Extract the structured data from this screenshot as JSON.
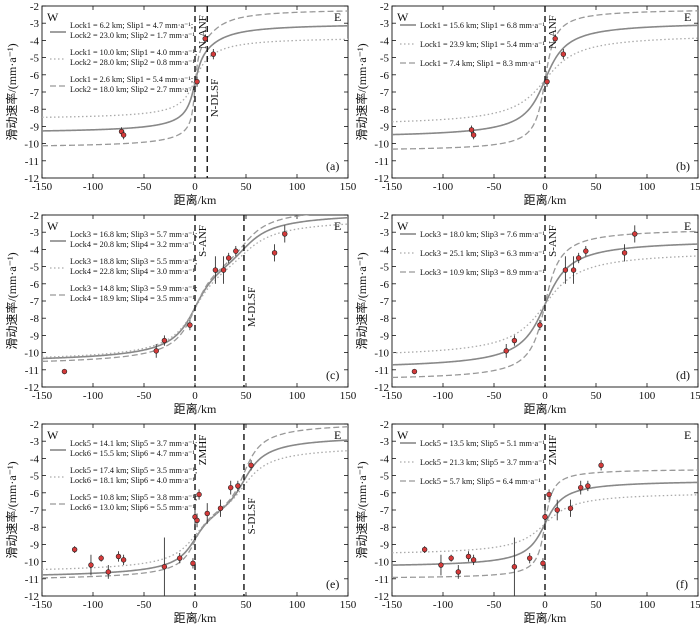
{
  "figure": {
    "xlabel": "距离/km",
    "ylabel": "滑动速率/(mm·a⁻¹)",
    "west": "W",
    "east": "E",
    "xticks": [
      -150,
      -100,
      -50,
      0,
      50,
      100,
      150
    ],
    "yticks": [
      -12,
      -11,
      -10,
      -9,
      -8,
      -7,
      -6,
      -5,
      -4,
      -3,
      -2
    ]
  },
  "chart_data": [
    {
      "type": "line",
      "panel": "(a)",
      "xlim": [
        -150,
        150
      ],
      "ylim": [
        -12,
        -2
      ],
      "legend": [
        {
          "style": "solid",
          "line1": "Lock1 = 6.2 km; Slip1 = 4.7 mm·a⁻¹;",
          "line2": "Lock2 = 23.0 km; Slip2 = 1.7 mm·a⁻¹"
        },
        {
          "style": "dotted",
          "line1": "Lock1 = 10.0 km; Slip1 = 4.0 mm·a⁻¹;",
          "line2": "Lock2 = 28.0 km; Slip2 = 0.8 mm·a⁻¹"
        },
        {
          "style": "dashed",
          "line1": "Lock1 = 2.6 km; Slip1 = 5.4 mm·a⁻¹;",
          "line2": "Lock2 = 18.0 km; Slip2 = 2.7 mm·a⁻¹"
        }
      ],
      "faults": [
        {
          "x": 0,
          "label": "N-ANF"
        },
        {
          "x": 12,
          "label": "N-DLSF"
        }
      ],
      "curves": [
        {
          "style": "solid",
          "params": [
            [
              0,
              6.2,
              4.7
            ],
            [
              12,
              23.0,
              1.7
            ]
          ],
          "offset": -6.2
        },
        {
          "style": "dotted",
          "params": [
            [
              0,
              10.0,
              4.0
            ],
            [
              12,
              28.0,
              0.8
            ]
          ],
          "offset": -6.2
        },
        {
          "style": "dashed",
          "params": [
            [
              0,
              2.6,
              5.4
            ],
            [
              12,
              18.0,
              2.7
            ]
          ],
          "offset": -6.2
        }
      ],
      "points": [
        {
          "x": -72,
          "y": -9.3,
          "err": 0.25
        },
        {
          "x": -70,
          "y": -9.5,
          "err": 0.25
        },
        {
          "x": 2,
          "y": -6.4,
          "err": 0.3
        },
        {
          "x": 10,
          "y": -3.9,
          "err": 0.25
        },
        {
          "x": 18,
          "y": -4.8,
          "err": 0.3
        }
      ]
    },
    {
      "type": "line",
      "panel": "(b)",
      "xlim": [
        -150,
        150
      ],
      "ylim": [
        -12,
        -2
      ],
      "legend": [
        {
          "style": "solid",
          "line1": "Lock1 = 15.6 km; Slip1 = 6.8 mm·a⁻¹"
        },
        {
          "style": "dotted",
          "line1": "Lock1 = 23.9 km; Slip1 = 5.4 mm·a⁻¹"
        },
        {
          "style": "dashed",
          "line1": "Lock1 = 7.4 km; Slip1 = 8.3 mm·a⁻¹"
        }
      ],
      "faults": [
        {
          "x": 0,
          "label": "N-ANF"
        }
      ],
      "curves": [
        {
          "style": "solid",
          "params": [
            [
              0,
              15.6,
              6.8
            ]
          ],
          "offset": -6.3
        },
        {
          "style": "dotted",
          "params": [
            [
              0,
              23.9,
              5.4
            ]
          ],
          "offset": -6.3
        },
        {
          "style": "dashed",
          "params": [
            [
              0,
              7.4,
              8.3
            ]
          ],
          "offset": -6.3
        }
      ],
      "points": [
        {
          "x": -72,
          "y": -9.2,
          "err": 0.25
        },
        {
          "x": -70,
          "y": -9.5,
          "err": 0.25
        },
        {
          "x": 2,
          "y": -6.4,
          "err": 0.3
        },
        {
          "x": 10,
          "y": -3.9,
          "err": 0.25
        },
        {
          "x": 18,
          "y": -4.8,
          "err": 0.3
        }
      ]
    },
    {
      "type": "line",
      "panel": "(c)",
      "xlim": [
        -150,
        150
      ],
      "ylim": [
        -12,
        -2
      ],
      "legend": [
        {
          "style": "solid",
          "line1": "Lock3 = 16.8 km; Slip3 = 5.7 mm·a⁻¹;",
          "line2": "Lock4 = 20.8 km; Slip4 = 3.2 mm·a⁻¹"
        },
        {
          "style": "dotted",
          "line1": "Lock3 = 18.8 km; Slip3 = 5.5 mm·a⁻¹;",
          "line2": "Lock4 = 22.8 km; Slip4 = 3.0 mm·a⁻¹"
        },
        {
          "style": "dashed",
          "line1": "Lock3 = 14.8 km; Slip3 = 5.9 mm·a⁻¹;",
          "line2": "Lock4 = 18.9 km; Slip4 = 3.5 mm·a⁻¹"
        }
      ],
      "faults": [
        {
          "x": 0,
          "label": "S-ANF"
        },
        {
          "x": 48,
          "label": "M-DLSF"
        }
      ],
      "curves": [
        {
          "style": "solid",
          "params": [
            [
              0,
              16.8,
              5.7
            ],
            [
              48,
              20.8,
              3.2
            ]
          ],
          "offset": -6.2
        },
        {
          "style": "dotted",
          "params": [
            [
              0,
              18.8,
              5.5
            ],
            [
              48,
              22.8,
              3.0
            ]
          ],
          "offset": -6.35
        },
        {
          "style": "dashed",
          "params": [
            [
              0,
              14.8,
              5.9
            ],
            [
              48,
              18.9,
              3.5
            ]
          ],
          "offset": -6.1
        }
      ],
      "points": [
        {
          "x": -128,
          "y": -11.1,
          "err": 0.15
        },
        {
          "x": -38,
          "y": -9.9,
          "err": 0.4
        },
        {
          "x": -30,
          "y": -9.3,
          "err": 0.3
        },
        {
          "x": -5,
          "y": -8.4,
          "err": 0.3
        },
        {
          "x": 20,
          "y": -5.2,
          "err": 0.8
        },
        {
          "x": 28,
          "y": -5.2,
          "err": 0.8
        },
        {
          "x": 33,
          "y": -4.5,
          "err": 0.3
        },
        {
          "x": 40,
          "y": -4.1,
          "err": 0.3
        },
        {
          "x": 78,
          "y": -4.2,
          "err": 0.5
        },
        {
          "x": 88,
          "y": -3.1,
          "err": 0.5
        }
      ]
    },
    {
      "type": "line",
      "panel": "(d)",
      "xlim": [
        -150,
        150
      ],
      "ylim": [
        -12,
        -2
      ],
      "legend": [
        {
          "style": "solid",
          "line1": "Lock3 = 18.0 km; Slip3 = 7.6 mm·a⁻¹"
        },
        {
          "style": "dotted",
          "line1": "Lock3 = 25.1 km; Slip3 = 6.3 mm·a⁻¹"
        },
        {
          "style": "dashed",
          "line1": "Lock3 = 10.9 km; Slip3 = 8.9 mm·a⁻¹"
        }
      ],
      "faults": [
        {
          "x": 0,
          "label": "S-ANF"
        }
      ],
      "curves": [
        {
          "style": "solid",
          "params": [
            [
              0,
              18.0,
              7.6
            ]
          ],
          "offset": -7.2
        },
        {
          "style": "dotted",
          "params": [
            [
              0,
              25.1,
              6.3
            ]
          ],
          "offset": -7.2
        },
        {
          "style": "dashed",
          "params": [
            [
              0,
              10.9,
              8.9
            ]
          ],
          "offset": -7.2
        }
      ],
      "points": [
        {
          "x": -128,
          "y": -11.1,
          "err": 0.15
        },
        {
          "x": -38,
          "y": -9.9,
          "err": 0.4
        },
        {
          "x": -30,
          "y": -9.3,
          "err": 0.3
        },
        {
          "x": -5,
          "y": -8.4,
          "err": 0.3
        },
        {
          "x": 20,
          "y": -5.2,
          "err": 0.8
        },
        {
          "x": 28,
          "y": -5.2,
          "err": 0.8
        },
        {
          "x": 33,
          "y": -4.5,
          "err": 0.3
        },
        {
          "x": 40,
          "y": -4.1,
          "err": 0.3
        },
        {
          "x": 78,
          "y": -4.2,
          "err": 0.5
        },
        {
          "x": 88,
          "y": -3.1,
          "err": 0.5
        }
      ]
    },
    {
      "type": "line",
      "panel": "(e)",
      "xlim": [
        -150,
        150
      ],
      "ylim": [
        -12,
        -2
      ],
      "legend": [
        {
          "style": "solid",
          "line1": "Lock5 = 14.1 km; Slip5 = 3.7 mm·a⁻¹;",
          "line2": "Lock6 = 15.5 km; Slip6 = 4.7 mm·a⁻¹"
        },
        {
          "style": "dotted",
          "line1": "Lock5 = 17.4 km; Slip5 = 3.5 mm·a⁻¹;",
          "line2": "Lock6 = 18.1 km; Slip6 = 4.0 mm·a⁻¹"
        },
        {
          "style": "dashed",
          "line1": "Lock5 = 10.8 km; Slip5 = 3.8 mm·a⁻¹;",
          "line2": "Lock6 = 13.0 km; Slip6 = 5.5 mm·a⁻¹"
        }
      ],
      "faults": [
        {
          "x": 0,
          "label": "ZMHF"
        },
        {
          "x": 48,
          "label": "S-DLSF"
        }
      ],
      "curves": [
        {
          "style": "solid",
          "params": [
            [
              0,
              14.1,
              3.7
            ],
            [
              48,
              15.5,
              4.7
            ]
          ],
          "offset": -6.8
        },
        {
          "style": "dotted",
          "params": [
            [
              0,
              17.4,
              3.5
            ],
            [
              48,
              18.1,
              4.0
            ]
          ],
          "offset": -6.95
        },
        {
          "style": "dashed",
          "params": [
            [
              0,
              10.8,
              3.8
            ],
            [
              48,
              13.0,
              5.5
            ]
          ],
          "offset": -6.5
        }
      ],
      "points": [
        {
          "x": -118,
          "y": -9.3,
          "err": 0.2
        },
        {
          "x": -102,
          "y": -10.2,
          "err": 0.6
        },
        {
          "x": -92,
          "y": -9.8,
          "err": 0.2
        },
        {
          "x": -85,
          "y": -10.6,
          "err": 0.4
        },
        {
          "x": -75,
          "y": -9.7,
          "err": 0.3
        },
        {
          "x": -70,
          "y": -9.9,
          "err": 0.3
        },
        {
          "x": -30,
          "y": -10.3,
          "err": 1.7
        },
        {
          "x": -15,
          "y": -9.8,
          "err": 0.3
        },
        {
          "x": -2,
          "y": -10.1,
          "err": 0.3
        },
        {
          "x": 0,
          "y": -7.4,
          "err": 0.5
        },
        {
          "x": 2,
          "y": -7.6,
          "err": 0.4
        },
        {
          "x": 4,
          "y": -6.1,
          "err": 0.3
        },
        {
          "x": 12,
          "y": -7.2,
          "err": 0.6
        },
        {
          "x": 25,
          "y": -6.9,
          "err": 0.5
        },
        {
          "x": 35,
          "y": -5.7,
          "err": 0.4
        },
        {
          "x": 42,
          "y": -5.6,
          "err": 0.3
        },
        {
          "x": 55,
          "y": -4.4,
          "err": 0.3
        }
      ]
    },
    {
      "type": "line",
      "panel": "(f)",
      "xlim": [
        -150,
        150
      ],
      "ylim": [
        -12,
        -2
      ],
      "legend": [
        {
          "style": "solid",
          "line1": "Lock5 = 13.5 km; Slip5 = 5.1 mm·a⁻¹"
        },
        {
          "style": "dotted",
          "line1": "Lock5 = 21.3 km; Slip5 = 3.7 mm·a⁻¹"
        },
        {
          "style": "dashed",
          "line1": "Lock5 =  5.7 km; Slip5 = 6.4 mm·a⁻¹"
        }
      ],
      "faults": [
        {
          "x": 0,
          "label": "ZMHF"
        }
      ],
      "curves": [
        {
          "style": "solid",
          "params": [
            [
              0,
              13.5,
              5.1
            ]
          ],
          "offset": -7.8
        },
        {
          "style": "dotted",
          "params": [
            [
              0,
              21.3,
              3.7
            ]
          ],
          "offset": -7.8
        },
        {
          "style": "dashed",
          "params": [
            [
              0,
              5.7,
              6.4
            ]
          ],
          "offset": -7.8
        }
      ],
      "points": [
        {
          "x": -118,
          "y": -9.3,
          "err": 0.2
        },
        {
          "x": -102,
          "y": -10.2,
          "err": 0.6
        },
        {
          "x": -92,
          "y": -9.8,
          "err": 0.2
        },
        {
          "x": -85,
          "y": -10.6,
          "err": 0.4
        },
        {
          "x": -75,
          "y": -9.7,
          "err": 0.3
        },
        {
          "x": -70,
          "y": -9.9,
          "err": 0.3
        },
        {
          "x": -30,
          "y": -10.3,
          "err": 1.7
        },
        {
          "x": -15,
          "y": -9.8,
          "err": 0.3
        },
        {
          "x": -2,
          "y": -10.1,
          "err": 0.3
        },
        {
          "x": 0,
          "y": -7.4,
          "err": 0.5
        },
        {
          "x": 4,
          "y": -6.1,
          "err": 0.3
        },
        {
          "x": 12,
          "y": -7.0,
          "err": 0.6
        },
        {
          "x": 25,
          "y": -6.9,
          "err": 0.5
        },
        {
          "x": 35,
          "y": -5.7,
          "err": 0.4
        },
        {
          "x": 42,
          "y": -5.6,
          "err": 0.3
        },
        {
          "x": 55,
          "y": -4.4,
          "err": 0.3
        }
      ]
    }
  ]
}
